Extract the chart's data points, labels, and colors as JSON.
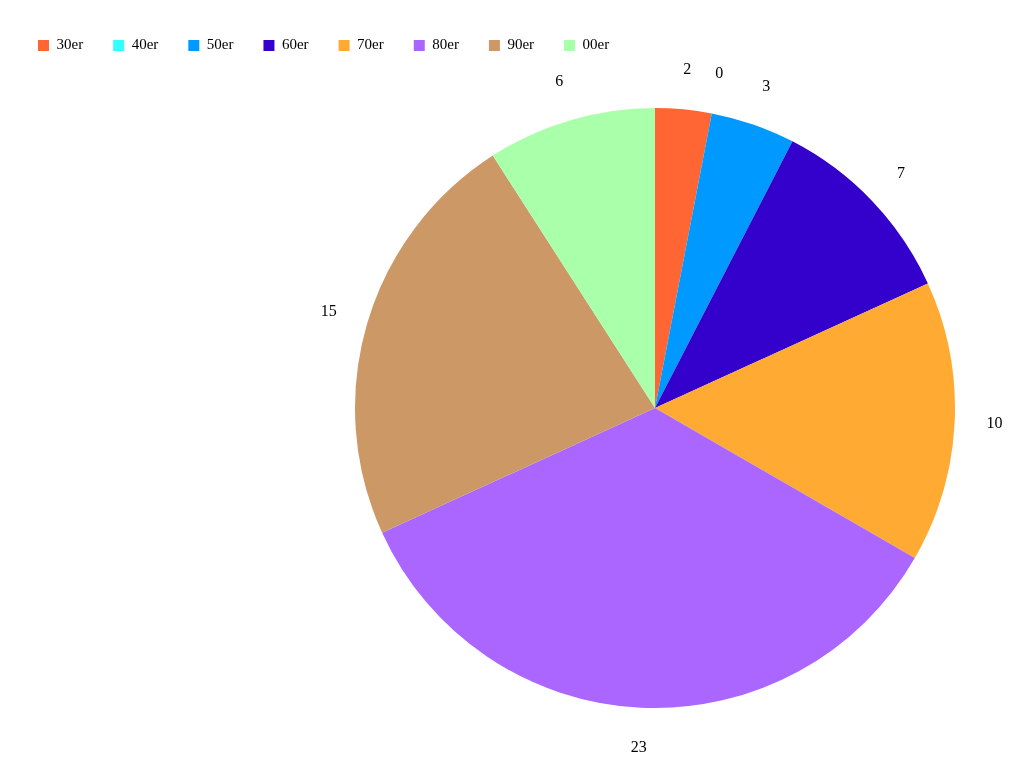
{
  "chart_data": {
    "type": "pie",
    "categories": [
      "30er",
      "40er",
      "50er",
      "60er",
      "70er",
      "80er",
      "90er",
      "00er"
    ],
    "values": [
      2,
      0,
      3,
      7,
      10,
      23,
      15,
      6
    ],
    "value_labels": [
      "2",
      "0",
      "3",
      "7",
      "10",
      "23",
      "15",
      "6"
    ],
    "colors": [
      "#ff6633",
      "#33ffff",
      "#0099ff",
      "#3300cc",
      "#ffaa33",
      "#aa66ff",
      "#cc9966",
      "#aaffaa"
    ],
    "legend": "top left"
  }
}
